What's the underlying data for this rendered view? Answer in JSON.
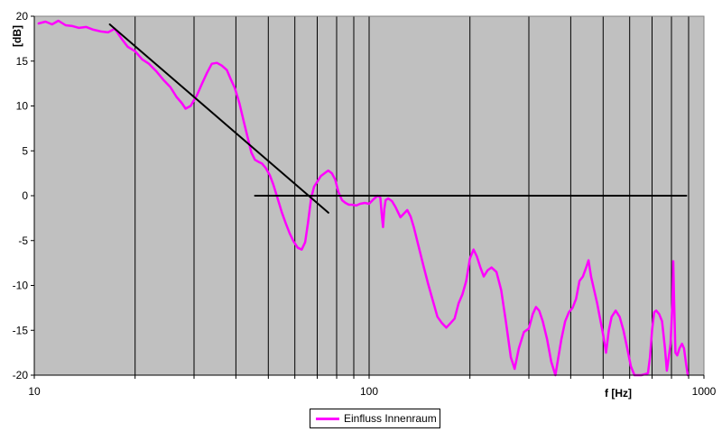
{
  "chart_data": {
    "type": "line",
    "title": "",
    "xlabel": "f [Hz]",
    "ylabel": "[dB]",
    "x_scale": "log",
    "xlim": [
      10,
      1000
    ],
    "ylim": [
      -20,
      20
    ],
    "y_ticks": [
      -20,
      -15,
      -10,
      -5,
      0,
      5,
      10,
      15,
      20
    ],
    "x_tick_labels": [
      {
        "value": 10,
        "label": "10"
      },
      {
        "value": 100,
        "label": "100"
      },
      {
        "value": 1000,
        "label": "1000"
      }
    ],
    "grid": {
      "vertical_minor": true,
      "horizontal": false
    },
    "background": "#c0c0c0",
    "legend": {
      "placement": "bottom-center",
      "entries": [
        "Einfluss Innenraum"
      ]
    },
    "series": [
      {
        "name": "Einfluss Innenraum",
        "color": "#ff00ff",
        "points": [
          [
            10.3,
            19.2
          ],
          [
            10.8,
            19.4
          ],
          [
            11.3,
            19.1
          ],
          [
            11.8,
            19.5
          ],
          [
            12.4,
            19.0
          ],
          [
            13.0,
            18.9
          ],
          [
            13.6,
            18.7
          ],
          [
            14.3,
            18.8
          ],
          [
            15.0,
            18.5
          ],
          [
            15.8,
            18.3
          ],
          [
            16.6,
            18.2
          ],
          [
            17.4,
            18.6
          ],
          [
            18.3,
            17.4
          ],
          [
            19.0,
            16.6
          ],
          [
            20.0,
            16.1
          ],
          [
            21.0,
            15.2
          ],
          [
            22.0,
            14.7
          ],
          [
            23.1,
            13.9
          ],
          [
            24.3,
            12.9
          ],
          [
            25.5,
            12.1
          ],
          [
            26.6,
            11.0
          ],
          [
            27.6,
            10.3
          ],
          [
            28.3,
            9.7
          ],
          [
            29.3,
            10.0
          ],
          [
            30.6,
            11.2
          ],
          [
            31.7,
            12.5
          ],
          [
            32.8,
            13.7
          ],
          [
            33.9,
            14.7
          ],
          [
            35.1,
            14.8
          ],
          [
            36.3,
            14.5
          ],
          [
            37.6,
            14.0
          ],
          [
            38.6,
            13.0
          ],
          [
            39.7,
            12.0
          ],
          [
            41.0,
            10.3
          ],
          [
            42.2,
            8.3
          ],
          [
            43.5,
            6.3
          ],
          [
            44.5,
            4.8
          ],
          [
            45.6,
            4.0
          ],
          [
            46.6,
            3.8
          ],
          [
            47.8,
            3.6
          ],
          [
            49.1,
            3.1
          ],
          [
            50.5,
            2.3
          ],
          [
            51.8,
            1.2
          ],
          [
            53.3,
            -0.3
          ],
          [
            54.8,
            -1.8
          ],
          [
            56.4,
            -3.1
          ],
          [
            57.9,
            -4.2
          ],
          [
            59.5,
            -5.1
          ],
          [
            61.2,
            -5.8
          ],
          [
            62.9,
            -6.0
          ],
          [
            64.4,
            -5.2
          ],
          [
            65.7,
            -3.0
          ],
          [
            67.1,
            -0.3
          ],
          [
            68.5,
            1.0
          ],
          [
            70.1,
            1.6
          ],
          [
            71.8,
            2.2
          ],
          [
            73.6,
            2.5
          ],
          [
            75.5,
            2.8
          ],
          [
            77.4,
            2.5
          ],
          [
            79.2,
            1.8
          ],
          [
            81.0,
            0.4
          ],
          [
            83.0,
            -0.5
          ],
          [
            85.0,
            -0.8
          ],
          [
            87.0,
            -1.0
          ],
          [
            89.0,
            -1.0
          ],
          [
            91.5,
            -1.1
          ],
          [
            94.0,
            -0.9
          ],
          [
            97.0,
            -0.8
          ],
          [
            100.0,
            -0.9
          ],
          [
            103.0,
            -0.4
          ],
          [
            106.0,
            0.0
          ],
          [
            108.0,
            -0.2
          ],
          [
            109.0,
            -2.0
          ],
          [
            110.0,
            -3.5
          ],
          [
            111.0,
            -1.5
          ],
          [
            112.0,
            -0.5
          ],
          [
            114.0,
            -0.3
          ],
          [
            117.0,
            -0.6
          ],
          [
            120.0,
            -1.3
          ],
          [
            124.0,
            -2.4
          ],
          [
            127.0,
            -2.0
          ],
          [
            130.0,
            -1.6
          ],
          [
            133.0,
            -2.3
          ],
          [
            136.0,
            -3.5
          ],
          [
            140.0,
            -5.4
          ],
          [
            145.0,
            -7.7
          ],
          [
            150.0,
            -9.8
          ],
          [
            155.0,
            -11.7
          ],
          [
            160.0,
            -13.5
          ],
          [
            165.0,
            -14.2
          ],
          [
            170.0,
            -14.7
          ],
          [
            175.0,
            -14.2
          ],
          [
            180.0,
            -13.7
          ],
          [
            185.0,
            -12.0
          ],
          [
            190.0,
            -11.0
          ],
          [
            195.0,
            -9.5
          ],
          [
            200.0,
            -7.0
          ],
          [
            205.0,
            -6.0
          ],
          [
            210.0,
            -6.8
          ],
          [
            215.0,
            -8.0
          ],
          [
            220.0,
            -9.0
          ],
          [
            226.0,
            -8.3
          ],
          [
            232.0,
            -8.0
          ],
          [
            240.0,
            -8.5
          ],
          [
            248.0,
            -10.5
          ],
          [
            256.0,
            -14.0
          ],
          [
            265.0,
            -18.0
          ],
          [
            272.0,
            -19.3
          ],
          [
            280.0,
            -17.0
          ],
          [
            290.0,
            -15.2
          ],
          [
            300.0,
            -14.8
          ],
          [
            308.0,
            -13.2
          ],
          [
            315.0,
            -12.4
          ],
          [
            322.0,
            -12.8
          ],
          [
            330.0,
            -14.0
          ],
          [
            340.0,
            -16.0
          ],
          [
            350.0,
            -18.5
          ],
          [
            360.0,
            -20.0
          ],
          [
            375.0,
            -16.0
          ],
          [
            385.0,
            -14.0
          ],
          [
            395.0,
            -13.0
          ],
          [
            405.0,
            -12.5
          ],
          [
            415.0,
            -11.5
          ],
          [
            425.0,
            -9.5
          ],
          [
            435.0,
            -9.0
          ],
          [
            445.0,
            -8.0
          ],
          [
            452.0,
            -7.2
          ],
          [
            460.0,
            -9.0
          ],
          [
            470.0,
            -10.5
          ],
          [
            480.0,
            -12.0
          ],
          [
            490.0,
            -13.8
          ],
          [
            500.0,
            -15.5
          ],
          [
            510.0,
            -17.5
          ],
          [
            520.0,
            -15.0
          ],
          [
            530.0,
            -13.5
          ],
          [
            545.0,
            -12.8
          ],
          [
            560.0,
            -13.5
          ],
          [
            575.0,
            -15.0
          ],
          [
            590.0,
            -17.0
          ],
          [
            605.0,
            -19.0
          ],
          [
            620.0,
            -20.0
          ],
          [
            650.0,
            -20.0
          ],
          [
            680.0,
            -19.8
          ],
          [
            690.0,
            -18.0
          ],
          [
            700.0,
            -15.0
          ],
          [
            710.0,
            -13.0
          ],
          [
            720.0,
            -12.8
          ],
          [
            735.0,
            -13.2
          ],
          [
            750.0,
            -14.0
          ],
          [
            765.0,
            -17.0
          ],
          [
            775.0,
            -19.5
          ],
          [
            785.0,
            -18.0
          ],
          [
            795.0,
            -16.5
          ],
          [
            805.0,
            -12.0
          ],
          [
            810.0,
            -7.3
          ],
          [
            815.0,
            -12.0
          ],
          [
            822.0,
            -17.5
          ],
          [
            832.0,
            -17.8
          ],
          [
            845.0,
            -17.0
          ],
          [
            860.0,
            -16.5
          ],
          [
            872.0,
            -17.0
          ],
          [
            885.0,
            -18.8
          ],
          [
            895.0,
            -20.0
          ]
        ]
      },
      {
        "name": "",
        "color": "#000000",
        "points": [
          [
            16.8,
            19.1
          ],
          [
            75.6,
            -1.9
          ]
        ]
      },
      {
        "name": "",
        "color": "#000000",
        "points": [
          [
            45.6,
            0.0
          ],
          [
            886.0,
            0.0
          ]
        ]
      }
    ]
  }
}
